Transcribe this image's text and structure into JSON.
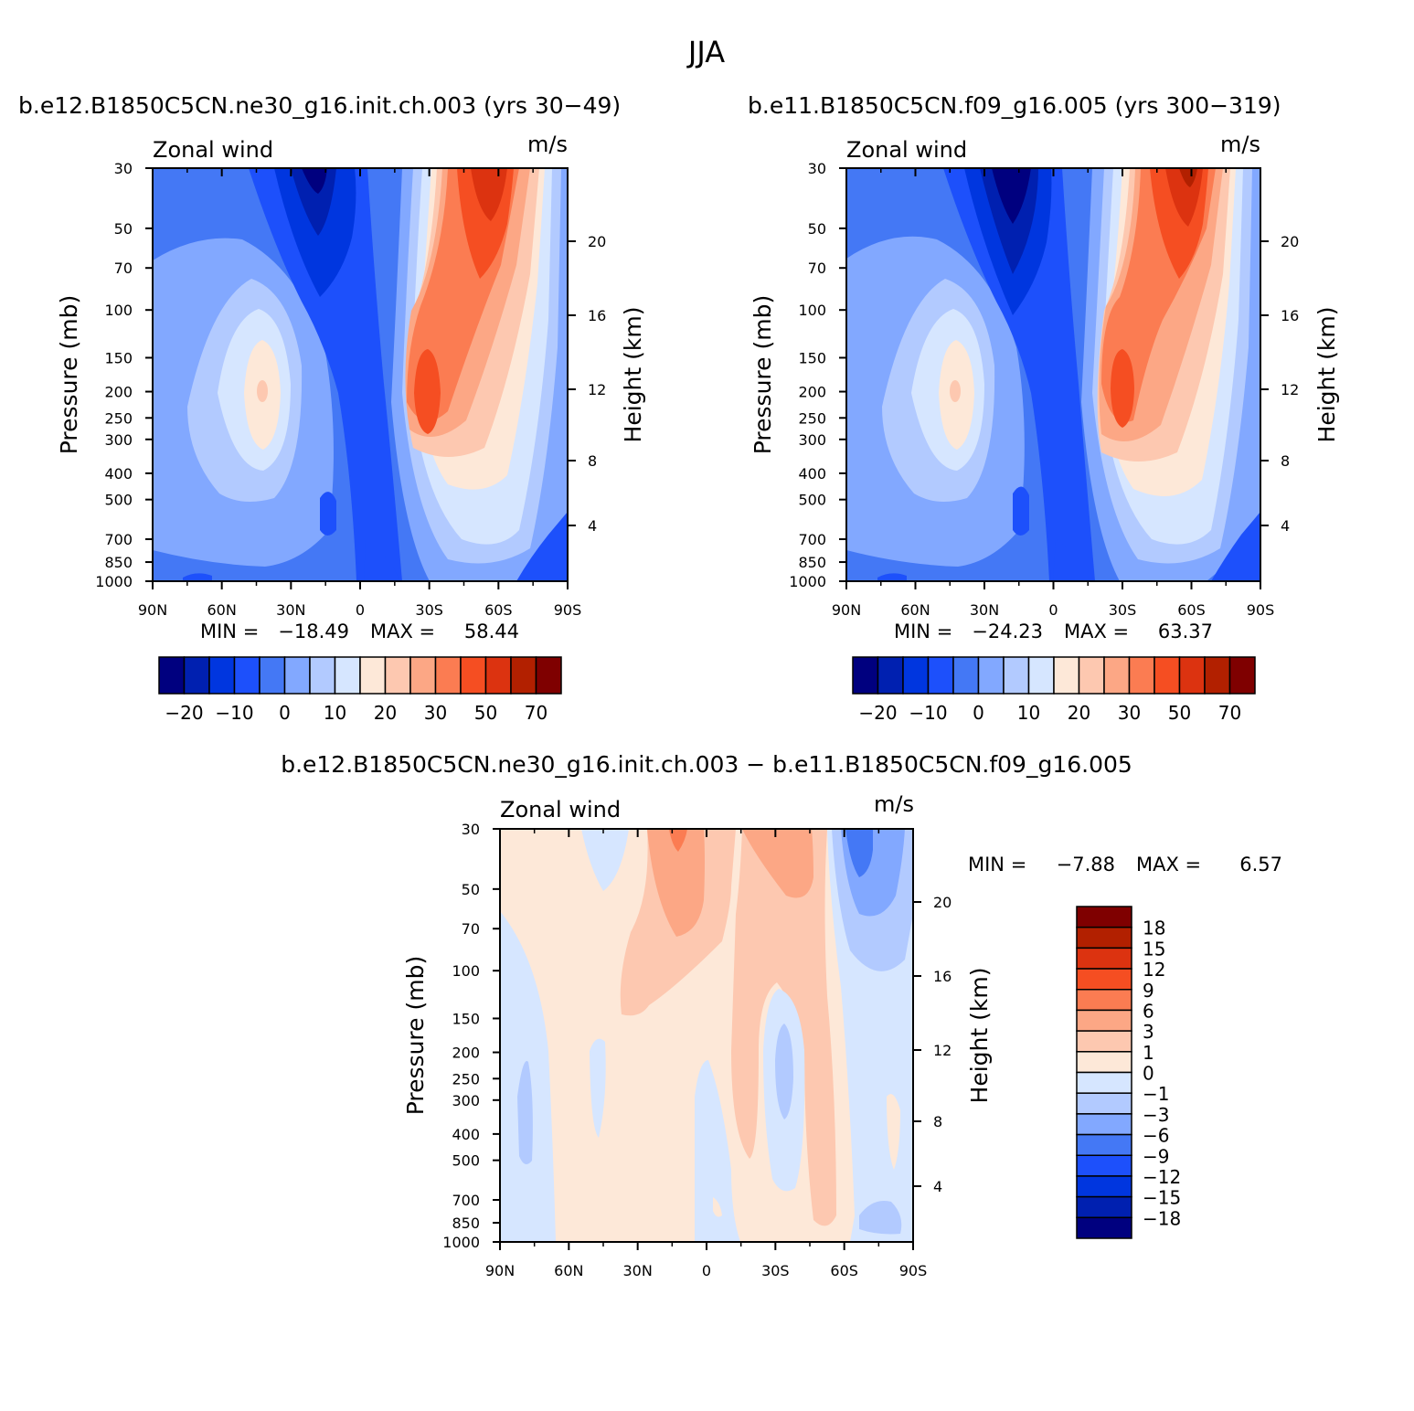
{
  "figure": {
    "season_title": "JJA"
  },
  "scales": {
    "pressure_ticks": [
      30,
      50,
      70,
      100,
      150,
      200,
      250,
      300,
      400,
      500,
      700,
      850,
      1000
    ],
    "height_ticks": [
      20,
      16,
      12,
      8,
      4
    ],
    "lat_ticks": [
      "90N",
      "60N",
      "30N",
      "0",
      "30S",
      "60S",
      "90S"
    ]
  },
  "colors": {
    "full_palette": [
      "#00007f",
      "#0020b0",
      "#0036df",
      "#1d50fb",
      "#4478f5",
      "#82a8ff",
      "#b2caff",
      "#d6e6ff",
      "#fde8d8",
      "#fdc8b0",
      "#fca785",
      "#fb7c52",
      "#f54e22",
      "#dc3310",
      "#b22000",
      "#7f0000"
    ],
    "diff_palette": [
      "#00007f",
      "#0020b0",
      "#0036df",
      "#1d50fb",
      "#4478f5",
      "#82a8ff",
      "#b2caff",
      "#d6e6ff",
      "#fde8d8",
      "#fdc8b0",
      "#fca785",
      "#fb7c52",
      "#f54e22",
      "#dc3310",
      "#b22000",
      "#7f0000"
    ]
  },
  "chart_data": [
    {
      "type": "heatmap",
      "title": "b.e12.B1850C5CN.ne30_g16.init.ch.003 (yrs 30−49)",
      "left_string": "Zonal wind",
      "right_string": "m/s",
      "ylabel": "Pressure (mb)",
      "ylabel_right": "Height (km)",
      "stats": {
        "min_label": "MIN =",
        "min": "−18.49",
        "max_label": "MAX =",
        "max": "58.44"
      },
      "colorbar": {
        "orientation": "horizontal",
        "labels": [
          "−20",
          "−10",
          "0",
          "10",
          "20",
          "30",
          "50",
          "70"
        ]
      }
    },
    {
      "type": "heatmap",
      "title": "b.e11.B1850C5CN.f09_g16.005 (yrs 300−319)",
      "left_string": "Zonal wind",
      "right_string": "m/s",
      "ylabel": "Pressure (mb)",
      "ylabel_right": "Height (km)",
      "stats": {
        "min_label": "MIN =",
        "min": "−24.23",
        "max_label": "MAX =",
        "max": "63.37"
      },
      "colorbar": {
        "orientation": "horizontal",
        "labels": [
          "−20",
          "−10",
          "0",
          "10",
          "20",
          "30",
          "50",
          "70"
        ]
      }
    },
    {
      "type": "heatmap",
      "title": "b.e12.B1850C5CN.ne30_g16.init.ch.003 − b.e11.B1850C5CN.f09_g16.005",
      "left_string": "Zonal wind",
      "right_string": "m/s",
      "ylabel": "Pressure (mb)",
      "ylabel_right": "Height (km)",
      "stats": {
        "min_label": "MIN =",
        "min": "−7.88",
        "max_label": "MAX =",
        "max": "6.57"
      },
      "colorbar": {
        "orientation": "vertical",
        "labels": [
          "18",
          "15",
          "12",
          "9",
          "6",
          "3",
          "1",
          "0",
          "−1",
          "−3",
          "−6",
          "−9",
          "−12",
          "−15",
          "−18"
        ]
      }
    }
  ]
}
